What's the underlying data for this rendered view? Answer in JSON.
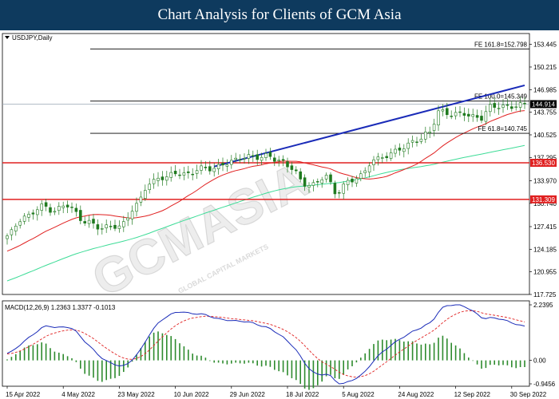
{
  "banner": {
    "title": "Chart Analysis for Clients of GCM Asia"
  },
  "chart_data": [
    {
      "type": "candlestick",
      "symbol_label": "USDJPY,Daily",
      "ylim": [
        117.725,
        155.0
      ],
      "y_ticks": [
        "153.445",
        "150.215",
        "146.985",
        "143.755",
        "140.525",
        "137.295",
        "133.970",
        "130.740",
        "127.415",
        "124.185",
        "120.955",
        "117.725"
      ],
      "x_ticks": [
        "15 Apr 2022",
        "4 May 2022",
        "23 May 2022",
        "10 Jun 2022",
        "29 Jun 2022",
        "18 Jul 2022",
        "5 Aug 2022",
        "24 Aug 2022",
        "12 Sep 2022",
        "30 Sep 2022"
      ],
      "x_tick_index": [
        0,
        13,
        26,
        39,
        52,
        65,
        78,
        91,
        104,
        117
      ],
      "n_bars": 121,
      "close_anchors": [
        [
          0,
          126.1
        ],
        [
          4,
          128.6
        ],
        [
          8,
          130.6
        ],
        [
          11,
          129.5
        ],
        [
          14,
          130.4
        ],
        [
          18,
          128.4
        ],
        [
          22,
          127.0
        ],
        [
          26,
          127.6
        ],
        [
          30,
          130.5
        ],
        [
          33,
          133.4
        ],
        [
          36,
          134.6
        ],
        [
          39,
          135.2
        ],
        [
          42,
          134.6
        ],
        [
          45,
          135.8
        ],
        [
          48,
          136.0
        ],
        [
          52,
          136.5
        ],
        [
          56,
          137.6
        ],
        [
          60,
          137.5
        ],
        [
          63,
          136.6
        ],
        [
          66,
          136.0
        ],
        [
          69,
          133.6
        ],
        [
          71,
          133.2
        ],
        [
          74,
          134.6
        ],
        [
          76,
          132.4
        ],
        [
          79,
          133.9
        ],
        [
          82,
          134.4
        ],
        [
          85,
          137.0
        ],
        [
          88,
          137.8
        ],
        [
          92,
          138.5
        ],
        [
          95,
          139.8
        ],
        [
          98,
          141.2
        ],
        [
          100,
          143.8
        ],
        [
          103,
          143.2
        ],
        [
          106,
          143.8
        ],
        [
          108,
          143.3
        ],
        [
          110,
          142.9
        ],
        [
          112,
          144.3
        ],
        [
          115,
          144.6
        ],
        [
          118,
          144.9
        ],
        [
          120,
          144.9
        ]
      ],
      "last_price": "144.914",
      "horizontal_levels": [
        {
          "price": 136.53,
          "label": "136.530",
          "color": "#e02020"
        },
        {
          "price": 131.309,
          "label": "131.309",
          "color": "#e02020"
        }
      ],
      "fibonacci_levels": [
        {
          "price": 152.798,
          "label": "FE 161.8=152.798"
        },
        {
          "price": 145.349,
          "label": "FE 100.0=145.349"
        },
        {
          "price": 140.745,
          "label": "FE 61.8=140.745"
        }
      ],
      "trendline": {
        "start": [
          48,
          136.0
        ],
        "end": [
          120,
          147.6
        ],
        "color": "#1a2bb8"
      },
      "ma_colors": {
        "fast": "#e02020",
        "slow": "#3ddc97"
      },
      "candle_color": "#1f7a1f"
    },
    {
      "type": "macd",
      "indicator_label": "MACD(12,26,9) 1.2363 1.3377 -0.1013",
      "ylim": [
        -0.9456,
        2.2395
      ],
      "y_ticks": [
        "2.2395",
        "0.00",
        "-0.9456"
      ],
      "macd_color": "#1a2bb8",
      "signal_color": "#e02020",
      "hist_color": "#2e8b2e"
    }
  ],
  "watermark": {
    "text": "GCMASIA",
    "subtext": "GLOBAL CAPITAL MARKETS"
  }
}
